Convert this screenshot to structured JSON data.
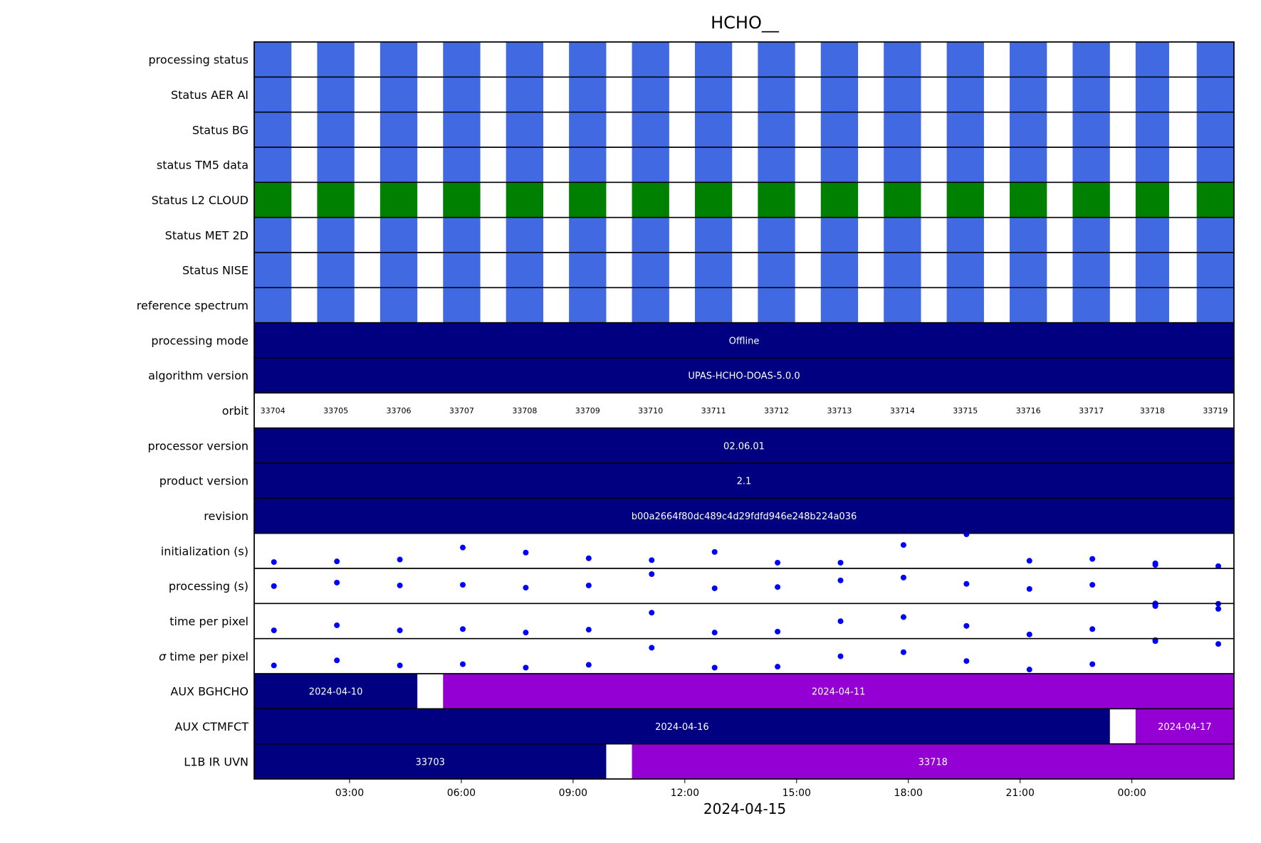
{
  "chart_data": {
    "type": "timeline",
    "title": "HCHO__",
    "xlabel": "2024-04-15",
    "x_axis": {
      "unit": "hours since 2024-04-15 00:00",
      "range": [
        0.44,
        26.74
      ],
      "ticks": [
        {
          "t": 3,
          "label": "03:00"
        },
        {
          "t": 6,
          "label": "06:00"
        },
        {
          "t": 9,
          "label": "09:00"
        },
        {
          "t": 12,
          "label": "12:00"
        },
        {
          "t": 15,
          "label": "15:00"
        },
        {
          "t": 18,
          "label": "18:00"
        },
        {
          "t": 21,
          "label": "21:00"
        },
        {
          "t": 24,
          "label": "00:00"
        }
      ]
    },
    "colors": {
      "status_ok": "#4169e1",
      "cloud_ok": "#008000",
      "navy": "#000080",
      "violet": "#9400d3",
      "point": "#0000ff",
      "gap": "#ffffff"
    },
    "granules": [
      {
        "orbit": "33704",
        "start": 0.44,
        "end": 1.44
      },
      {
        "orbit": "33705",
        "start": 2.13,
        "end": 3.13
      },
      {
        "orbit": "33706",
        "start": 3.82,
        "end": 4.82
      },
      {
        "orbit": "33707",
        "start": 5.51,
        "end": 6.51
      },
      {
        "orbit": "33708",
        "start": 7.2,
        "end": 8.2
      },
      {
        "orbit": "33709",
        "start": 8.89,
        "end": 9.89
      },
      {
        "orbit": "33710",
        "start": 10.58,
        "end": 11.58
      },
      {
        "orbit": "33711",
        "start": 12.27,
        "end": 13.27
      },
      {
        "orbit": "33712",
        "start": 13.96,
        "end": 14.96
      },
      {
        "orbit": "33713",
        "start": 15.65,
        "end": 16.65
      },
      {
        "orbit": "33714",
        "start": 17.34,
        "end": 18.34
      },
      {
        "orbit": "33715",
        "start": 19.03,
        "end": 20.03
      },
      {
        "orbit": "33716",
        "start": 20.72,
        "end": 21.72
      },
      {
        "orbit": "33717",
        "start": 22.41,
        "end": 23.41
      },
      {
        "orbit": "33718",
        "start": 24.1,
        "end": 25.0
      },
      {
        "orbit": "33719",
        "start": 25.74,
        "end": 26.74
      }
    ],
    "rows": [
      {
        "label": "processing status",
        "kind": "status",
        "color": "status_ok"
      },
      {
        "label": "Status AER AI",
        "kind": "status",
        "color": "status_ok"
      },
      {
        "label": "Status BG",
        "kind": "status",
        "color": "status_ok"
      },
      {
        "label": "status TM5 data",
        "kind": "status",
        "color": "status_ok"
      },
      {
        "label": "Status L2  CLOUD",
        "kind": "status",
        "color": "cloud_ok"
      },
      {
        "label": "Status MET 2D",
        "kind": "status",
        "color": "status_ok"
      },
      {
        "label": "Status NISE",
        "kind": "status",
        "color": "status_ok"
      },
      {
        "label": "reference spectrum",
        "kind": "status",
        "color": "status_ok"
      },
      {
        "label": "processing mode",
        "kind": "spans",
        "spans": [
          {
            "start": 0.44,
            "end": 26.74,
            "color": "navy",
            "text": "Offline"
          }
        ]
      },
      {
        "label": "algorithm version",
        "kind": "spans",
        "spans": [
          {
            "start": 0.44,
            "end": 26.74,
            "color": "navy",
            "text": "UPAS-HCHO-DOAS-5.0.0"
          }
        ]
      },
      {
        "label": "orbit",
        "kind": "orbit"
      },
      {
        "label": "processor version",
        "kind": "spans",
        "spans": [
          {
            "start": 0.44,
            "end": 26.74,
            "color": "navy",
            "text": "02.06.01"
          }
        ]
      },
      {
        "label": "product version",
        "kind": "spans",
        "spans": [
          {
            "start": 0.44,
            "end": 26.74,
            "color": "navy",
            "text": "2.1"
          }
        ]
      },
      {
        "label": "revision",
        "kind": "spans",
        "spans": [
          {
            "start": 0.44,
            "end": 26.74,
            "color": "navy",
            "text": "b00a2664f80dc489c4d29fdfd946e248b224a036"
          }
        ]
      },
      {
        "label": "initialization (s)",
        "kind": "scatter",
        "values": [
          0.09,
          0.11,
          0.17,
          0.55,
          0.39,
          0.21,
          0.15,
          0.41,
          0.07,
          0.07,
          0.63,
          0.97,
          0.13,
          0.19,
          0.0,
          0.05,
          -0.04
        ]
      },
      {
        "label": "processing (s)",
        "kind": "scatter",
        "values": [
          0.44,
          0.55,
          0.46,
          0.48,
          0.39,
          0.46,
          0.82,
          0.37,
          0.41,
          0.62,
          0.71,
          0.51,
          0.35,
          0.48,
          -0.11,
          -0.14,
          -0.12
        ]
      },
      {
        "label": "time per pixel",
        "kind": "scatter",
        "values": [
          0.15,
          0.31,
          0.15,
          0.19,
          0.08,
          0.17,
          0.71,
          0.08,
          0.11,
          0.44,
          0.57,
          0.29,
          0.02,
          0.19,
          0.95,
          0.92,
          0.83
        ]
      },
      {
        "label": "σ time per pixel",
        "kind": "scatter",
        "label_math": true,
        "values": [
          0.15,
          0.31,
          0.15,
          0.19,
          0.08,
          0.17,
          0.71,
          0.08,
          0.11,
          0.44,
          0.57,
          0.29,
          0.02,
          0.19,
          0.95,
          0.92,
          0.83
        ]
      },
      {
        "label": "AUX BGHCHO",
        "kind": "spans",
        "spans": [
          {
            "start": 0.44,
            "end": 4.82,
            "color": "navy",
            "text": "2024-04-10"
          },
          {
            "start": 5.51,
            "end": 26.74,
            "color": "violet",
            "text": "2024-04-11"
          }
        ]
      },
      {
        "label": "AUX CTMFCT",
        "kind": "spans",
        "spans": [
          {
            "start": 0.44,
            "end": 23.41,
            "color": "navy",
            "text": "2024-04-16"
          },
          {
            "start": 24.1,
            "end": 26.74,
            "color": "violet",
            "text": "2024-04-17"
          }
        ]
      },
      {
        "label": "L1B IR UVN",
        "kind": "spans",
        "spans": [
          {
            "start": 0.44,
            "end": 9.89,
            "color": "navy",
            "text": "33703"
          },
          {
            "start": 10.58,
            "end": 26.74,
            "color": "violet",
            "text": "33718"
          }
        ]
      }
    ],
    "scatter_x": [
      0.97,
      2.66,
      4.35,
      6.04,
      7.73,
      9.42,
      11.11,
      12.8,
      14.49,
      16.18,
      17.87,
      19.56,
      21.25,
      22.94,
      24.63,
      24.63,
      26.32
    ]
  }
}
